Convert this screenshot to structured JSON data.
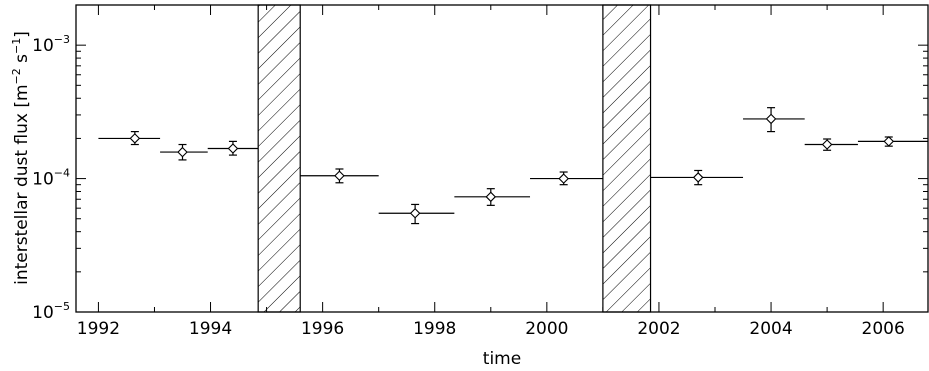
{
  "chart_data": {
    "type": "scatter",
    "xlabel": "time",
    "ylabel": "interstellar dust flux [m⁻² s⁻¹]",
    "ylabel_parts": {
      "pre": "interstellar dust flux [m",
      "exp1": "−2",
      "mid": " s",
      "exp2": "−1",
      "post": "]"
    },
    "y_scale": "log",
    "xlim": [
      1991.6,
      2006.8
    ],
    "ylim": [
      1e-05,
      0.002
    ],
    "x_ticks": [
      1992,
      1994,
      1996,
      1998,
      2000,
      2002,
      2004,
      2006
    ],
    "x_tick_labels": [
      "1992",
      "1994",
      "1996",
      "1998",
      "2000",
      "2002",
      "2004",
      "2006"
    ],
    "y_ticks": [
      {
        "value": 1e-05,
        "base": "10",
        "exp": "−5"
      },
      {
        "value": 0.0001,
        "base": "10",
        "exp": "−4"
      },
      {
        "value": 0.001,
        "base": "10",
        "exp": "−3"
      }
    ],
    "grid": false,
    "points": [
      {
        "x": 1992.65,
        "y": 0.0002,
        "x_low": 1992.0,
        "x_high": 1993.1,
        "y_low": 0.00018,
        "y_high": 0.000225
      },
      {
        "x": 1993.5,
        "y": 0.000158,
        "x_low": 1993.1,
        "x_high": 1993.95,
        "y_low": 0.000138,
        "y_high": 0.00018
      },
      {
        "x": 1994.4,
        "y": 0.000168,
        "x_low": 1993.95,
        "x_high": 1994.85,
        "y_low": 0.00015,
        "y_high": 0.00019
      },
      {
        "x": 1996.3,
        "y": 0.000105,
        "x_low": 1995.6,
        "x_high": 1997.0,
        "y_low": 9.3e-05,
        "y_high": 0.000118
      },
      {
        "x": 1997.65,
        "y": 5.5e-05,
        "x_low": 1997.0,
        "x_high": 1998.35,
        "y_low": 4.6e-05,
        "y_high": 6.4e-05
      },
      {
        "x": 1999.0,
        "y": 7.3e-05,
        "x_low": 1998.35,
        "x_high": 1999.7,
        "y_low": 6.3e-05,
        "y_high": 8.4e-05
      },
      {
        "x": 2000.3,
        "y": 0.0001,
        "x_low": 1999.7,
        "x_high": 2001.0,
        "y_low": 9e-05,
        "y_high": 0.000112
      },
      {
        "x": 2002.7,
        "y": 0.000102,
        "x_low": 2001.85,
        "x_high": 2003.5,
        "y_low": 9e-05,
        "y_high": 0.000115
      },
      {
        "x": 2004.0,
        "y": 0.00028,
        "x_low": 2003.5,
        "x_high": 2004.6,
        "y_low": 0.000225,
        "y_high": 0.00034
      },
      {
        "x": 2005.0,
        "y": 0.00018,
        "x_low": 2004.6,
        "x_high": 2005.55,
        "y_low": 0.000163,
        "y_high": 0.000198
      },
      {
        "x": 2006.1,
        "y": 0.00019,
        "x_low": 2005.55,
        "x_high": 2006.8,
        "y_low": 0.000175,
        "y_high": 0.000205
      }
    ],
    "hatched_intervals": [
      {
        "start": 1994.85,
        "end": 1995.6
      },
      {
        "start": 2001.0,
        "end": 2001.85
      }
    ]
  }
}
